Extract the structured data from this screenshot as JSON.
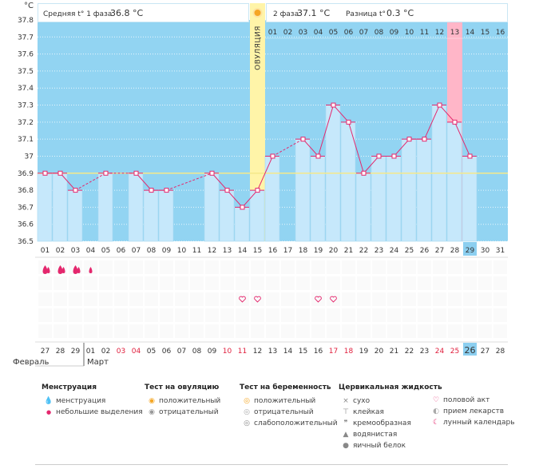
{
  "chart_data": {
    "type": "bar",
    "title": "",
    "ylabel": "°C",
    "xlabel": "",
    "ylim": [
      36.5,
      37.8
    ],
    "y_ticks": [
      36.5,
      36.6,
      36.7,
      36.8,
      36.9,
      37.0,
      37.1,
      37.2,
      37.3,
      37.4,
      37.5,
      37.6,
      37.7,
      37.8
    ],
    "y_tick_labels": [
      "36.5",
      "36.6",
      "36.7",
      "36.8",
      "36.9",
      "37",
      "37.1",
      "37.2",
      "37.3",
      "37.4",
      "37.5",
      "37.6",
      "37.7",
      "37.8"
    ],
    "cycle_days": [
      "01",
      "02",
      "03",
      "04",
      "05",
      "06",
      "07",
      "08",
      "09",
      "10",
      "11",
      "12",
      "13",
      "14",
      "15",
      "16",
      "17",
      "18",
      "19",
      "20",
      "21",
      "22",
      "23",
      "24",
      "25",
      "26",
      "27",
      "28",
      "29",
      "30",
      "31"
    ],
    "temperature_c": [
      36.9,
      36.9,
      36.8,
      null,
      36.9,
      null,
      36.9,
      36.8,
      36.8,
      null,
      null,
      36.9,
      36.8,
      36.7,
      36.8,
      37.0,
      null,
      37.1,
      37.0,
      37.3,
      37.2,
      36.9,
      37.0,
      37.0,
      37.1,
      37.1,
      37.3,
      37.2,
      37.0,
      null,
      null
    ],
    "dashed_gaps": [
      [
        3,
        5
      ],
      [
        9,
        12
      ],
      [
        16,
        18
      ]
    ],
    "phase2_day_labels": [
      "01",
      "02",
      "03",
      "04",
      "05",
      "06",
      "07",
      "08",
      "09",
      "10",
      "11",
      "12",
      "13",
      "14",
      "15",
      "16"
    ],
    "highlight_phase2_day": "13",
    "ovulation_day": "15",
    "ovulation_label": "ОВУЛЯЦИЯ",
    "coverline": 36.9,
    "current_cycle_day": "29",
    "phase1_avg_label": "Средняя t° 1 фаза",
    "phase1_avg_value": "36.8 °C",
    "phase2_avg_label": "2 фаза",
    "phase2_avg_value": "37.1 °C",
    "diff_label": "Разница t°",
    "diff_value": "0.3 °C",
    "menstruation_days": [
      {
        "day": 0,
        "icon": "heavy"
      },
      {
        "day": 1,
        "icon": "heavy"
      },
      {
        "day": 2,
        "icon": "heavy"
      },
      {
        "day": 3,
        "icon": "light"
      }
    ],
    "intercourse_days": [
      13,
      14,
      18,
      19
    ],
    "calendar_dates": [
      "27",
      "28",
      "29",
      "01",
      "02",
      "03",
      "04",
      "05",
      "06",
      "07",
      "08",
      "09",
      "10",
      "11",
      "12",
      "13",
      "14",
      "15",
      "16",
      "17",
      "18",
      "19",
      "20",
      "21",
      "22",
      "23",
      "24",
      "25",
      "26",
      "27",
      "28"
    ],
    "calendar_weekend_idx": [
      5,
      6,
      12,
      13,
      19,
      20,
      26,
      27
    ],
    "calendar_today_idx": 28,
    "month_labels": [
      "Февраль",
      "Март"
    ],
    "colors": {
      "sky": "#92d4f2",
      "bar": "#c6e8fb",
      "bar_edge": "#a4d7f1",
      "ovulation": "#fff4a8",
      "highlight": "#ffb6c8",
      "line": "#e4276d",
      "weekend": "#e01e3c",
      "today": "#8ccff0"
    }
  },
  "legend": {
    "menstruation": {
      "title": "Менструация",
      "items": [
        {
          "icon": "drop-heavy-icon",
          "label": "менструация"
        },
        {
          "icon": "drop-light-icon",
          "label": "небольшие выделения"
        }
      ]
    },
    "ovulation_test": {
      "title": "Тест на овуляцию",
      "items": [
        {
          "icon": "test-positive-icon",
          "label": "положительный"
        },
        {
          "icon": "test-negative-icon",
          "label": "отрицательный"
        }
      ]
    },
    "pregnancy_test": {
      "title": "Тест на беременность",
      "items": [
        {
          "icon": "preg-positive-icon",
          "label": "положительный"
        },
        {
          "icon": "preg-negative-icon",
          "label": "отрицательный"
        },
        {
          "icon": "preg-weak-icon",
          "label": "слабоположительный"
        }
      ]
    },
    "cervical": {
      "title": "Цервикальная жидкость",
      "items": [
        {
          "icon": "dry-icon",
          "label": "сухо"
        },
        {
          "icon": "sticky-icon",
          "label": "клейкая"
        },
        {
          "icon": "creamy-icon",
          "label": "кремообразная"
        },
        {
          "icon": "watery-icon",
          "label": "водянистая"
        },
        {
          "icon": "eggwhite-icon",
          "label": "яичный белок"
        }
      ]
    },
    "other": {
      "items": [
        {
          "icon": "heart-icon",
          "label": "половой акт"
        },
        {
          "icon": "pill-icon",
          "label": "прием лекарств"
        },
        {
          "icon": "moon-icon",
          "label": "лунный календарь"
        }
      ]
    }
  }
}
